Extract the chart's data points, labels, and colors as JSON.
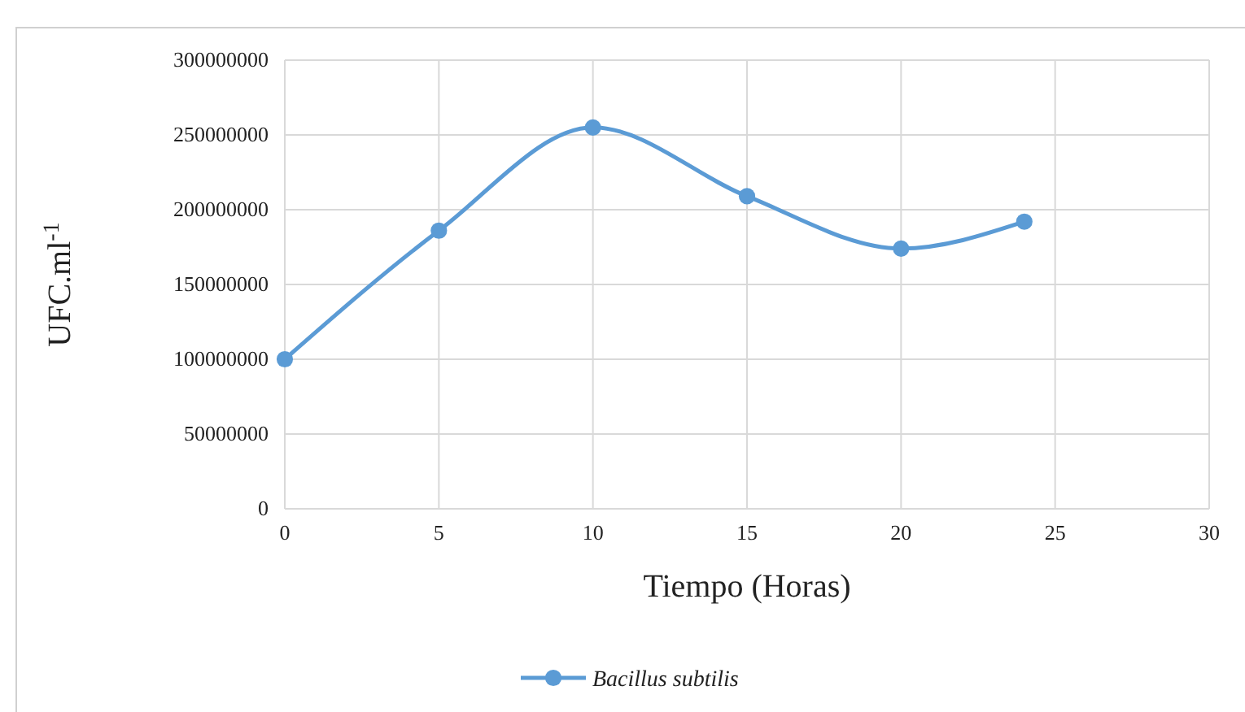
{
  "chart_data": {
    "type": "line",
    "xlabel": "Tiempo (Horas)",
    "ylabel": "UFC.ml$^{-1}$",
    "x": [
      0,
      5,
      10,
      15,
      20,
      24
    ],
    "series": [
      {
        "name": "Bacillus subtilis",
        "color": "#5b9bd5",
        "values": [
          100000000,
          186000000,
          255000000,
          209000000,
          174000000,
          192000000
        ]
      }
    ],
    "xlim": [
      0,
      30
    ],
    "xticks": [
      0,
      5,
      10,
      15,
      20,
      25,
      30
    ],
    "ylim": [
      0,
      300000000
    ],
    "yticks": [
      0,
      50000000,
      100000000,
      150000000,
      200000000,
      250000000,
      300000000
    ],
    "grid": true,
    "legend": "bottom",
    "marker": "circle",
    "line_style": "solid"
  }
}
